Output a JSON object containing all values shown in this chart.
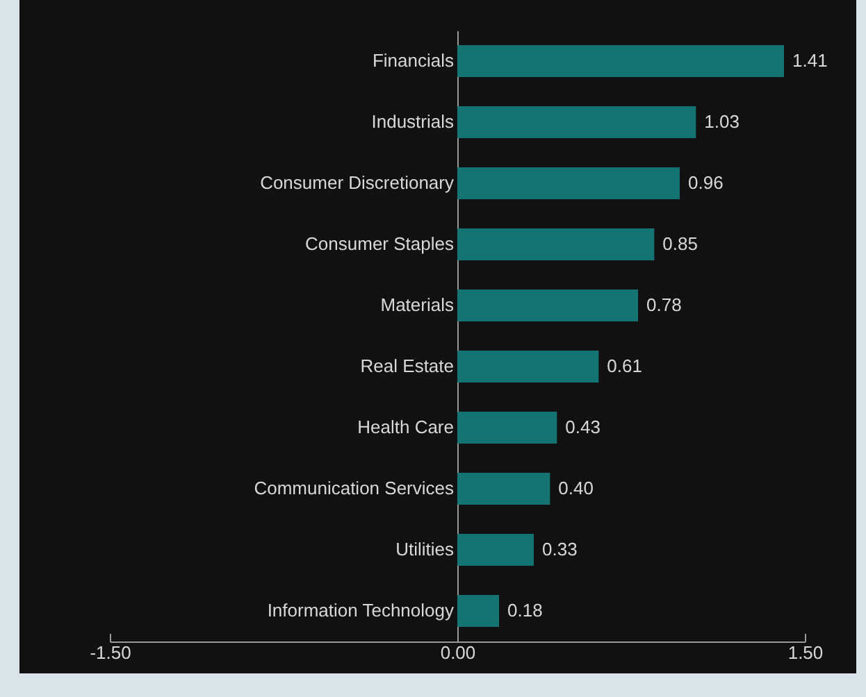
{
  "chart_data": {
    "type": "bar",
    "orientation": "horizontal",
    "categories": [
      "Financials",
      "Industrials",
      "Consumer Discretionary",
      "Consumer Staples",
      "Materials",
      "Real Estate",
      "Health Care",
      "Communication Services",
      "Utilities",
      "Information Technology"
    ],
    "values": [
      1.41,
      1.03,
      0.96,
      0.85,
      0.78,
      0.61,
      0.43,
      0.4,
      0.33,
      0.18
    ],
    "value_labels": [
      "1.41",
      "1.03",
      "0.96",
      "0.85",
      "0.78",
      "0.61",
      "0.43",
      "0.40",
      "0.33",
      "0.18"
    ],
    "color": "#137473",
    "xlim": [
      -1.5,
      1.5
    ],
    "xticks": [
      {
        "value": -1.5,
        "label": "-1.50"
      },
      {
        "value": 0,
        "label": "0.00"
      },
      {
        "value": 1.5,
        "label": "1.50"
      }
    ]
  }
}
